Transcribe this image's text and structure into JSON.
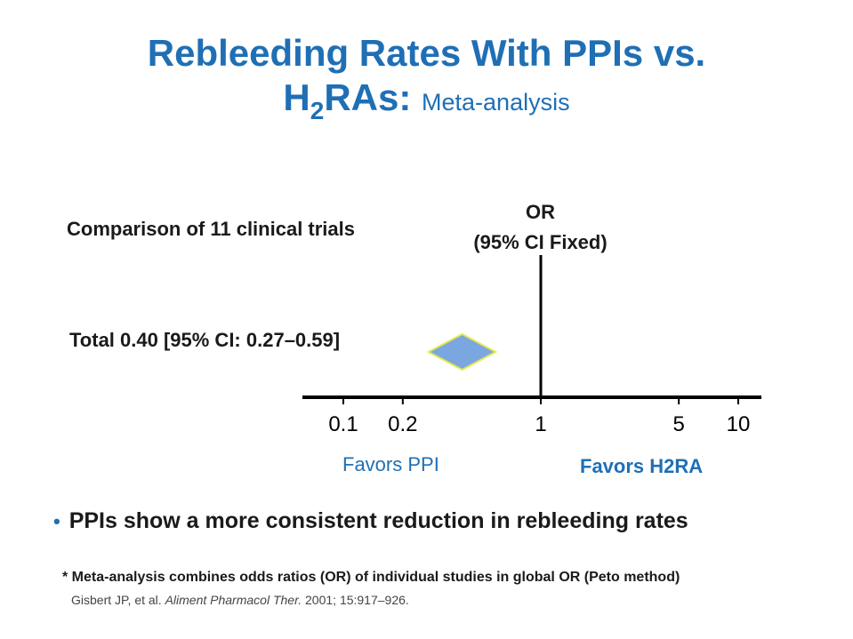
{
  "title": {
    "line1": "Rebleeding Rates With PPIs vs.",
    "line2_main": "H",
    "line2_sub": "2",
    "line2_rest": "RAs: ",
    "line2_small": "Meta-analysis"
  },
  "headers": {
    "comparison": "Comparison of 11 clinical trials",
    "or_line1": "OR",
    "or_line2": "(95% CI Fixed)"
  },
  "total_label": "Total 0.40 [95% CI: 0.27–0.59]",
  "favors": {
    "left": "Favors PPI",
    "right": "Favors H2RA"
  },
  "bullet": "PPIs show a more consistent reduction in rebleeding rates",
  "footnote": "* Meta-analysis combines odds ratios (OR) of individual studies in global OR (Peto method)",
  "citation": {
    "authors": "Gisbert JP, et al. ",
    "journal": "Aliment Pharmacol Ther.",
    "details": " 2001; 15:917–926."
  },
  "colors": {
    "title": "#1f6fb5",
    "diamond_fill": "#7aa7e0",
    "diamond_stroke": "#e6e84a",
    "axis": "#000000"
  },
  "chart_data": {
    "type": "forest",
    "scale": "log",
    "x_ticks": [
      0.1,
      0.2,
      1,
      5,
      10
    ],
    "x_tick_labels": [
      "0.1",
      "0.2",
      "1",
      "5",
      "10"
    ],
    "reference_line": 1,
    "pooled": {
      "label": "Total",
      "or": 0.4,
      "ci_low": 0.27,
      "ci_high": 0.59
    },
    "xlim": [
      0.1,
      10
    ]
  }
}
